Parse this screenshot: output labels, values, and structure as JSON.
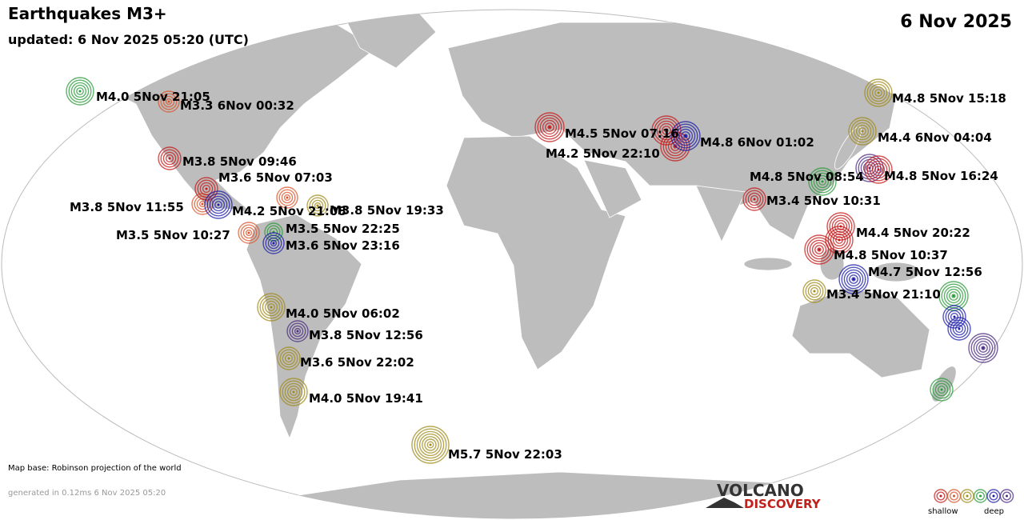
{
  "header": {
    "title": "Earthquakes M3+",
    "updated": "updated:  6 Nov 2025 05:20 (UTC)",
    "date": "6 Nov 2025"
  },
  "quakes": [
    {
      "label": "M4.0  5Nov 21:05"
    },
    {
      "label": "M3.3  6Nov 00:32"
    },
    {
      "label": "M3.8  5Nov 09:46"
    },
    {
      "label": "M3.6  5Nov 07:03"
    },
    {
      "label": "M3.8  5Nov 11:55"
    },
    {
      "label": "M4.2  5Nov 21:08"
    },
    {
      "label": "M3.8  5Nov 19:33"
    },
    {
      "label": "M3.5  5Nov 10:27"
    },
    {
      "label": "M3.5  5Nov 22:25"
    },
    {
      "label": "M3.6  5Nov 23:16"
    },
    {
      "label": "M4.0  5Nov 06:02"
    },
    {
      "label": "M3.8  5Nov 12:56"
    },
    {
      "label": "M3.6  5Nov 22:02"
    },
    {
      "label": "M4.0  5Nov 19:41"
    },
    {
      "label": "M5.7  5Nov 22:03"
    },
    {
      "label": "M4.5  5Nov 07:16"
    },
    {
      "label": "M4.2  5Nov 22:10"
    },
    {
      "label": "M4.8  6Nov 01:02"
    },
    {
      "label": "M4.8  5Nov 15:18"
    },
    {
      "label": "M4.4  6Nov 04:04"
    },
    {
      "label": "M4.8  5Nov 16:24"
    },
    {
      "label": "M4.8  5Nov 08:54"
    },
    {
      "label": "M3.4  5Nov 10:31"
    },
    {
      "label": "M4.4  5Nov 20:22"
    },
    {
      "label": "M4.8  5Nov 10:37"
    },
    {
      "label": "M4.7  5Nov 12:56"
    },
    {
      "label": "M3.4  5Nov 21:10"
    }
  ],
  "footer": {
    "map_base": "Map base: Robinson projection of the world",
    "generated": "generated in 0.12ms  6 Nov 2025 05:20"
  },
  "logo": {
    "line1": "VOLCANO",
    "line2": "DISCOVERY"
  },
  "legend": {
    "shallow": "shallow",
    "deep": "deep"
  }
}
